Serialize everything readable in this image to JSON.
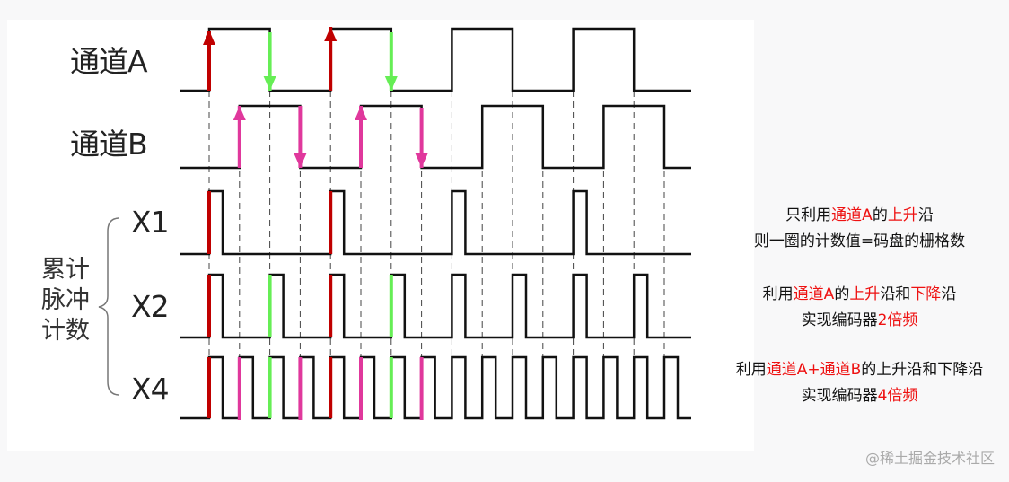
{
  "labels": {
    "channel_a": "通道A",
    "channel_b": "通道B",
    "x1": "X1",
    "x2": "X2",
    "x4": "X4",
    "pulse_count": "累计脉冲计数"
  },
  "colors": {
    "rise_a": "#c00000",
    "fall_a": "#66ee55",
    "edge_b": "#e0389c",
    "highlight_text": "#ee1111",
    "wave": "#111111"
  },
  "notes": [
    {
      "lines": [
        [
          {
            "t": "只利用",
            "red": false
          },
          {
            "t": "通道A",
            "red": true
          },
          {
            "t": "的",
            "red": false
          },
          {
            "t": "上升",
            "red": true
          },
          {
            "t": "沿",
            "red": false
          }
        ],
        [
          {
            "t": "则一圈的计数值=码盘的栅格数",
            "red": false
          }
        ]
      ]
    },
    {
      "lines": [
        [
          {
            "t": "利用",
            "red": false
          },
          {
            "t": "通道A",
            "red": true
          },
          {
            "t": "的",
            "red": false
          },
          {
            "t": "上升",
            "red": true
          },
          {
            "t": "沿和",
            "red": false
          },
          {
            "t": "下降",
            "red": true
          },
          {
            "t": "沿",
            "red": false
          }
        ],
        [
          {
            "t": "实现编码器",
            "red": false
          },
          {
            "t": "2倍频",
            "red": true
          }
        ]
      ]
    },
    {
      "lines": [
        [
          {
            "t": "利用",
            "red": false
          },
          {
            "t": "通道A+通道B",
            "red": true
          },
          {
            "t": "的上升沿和下降沿",
            "red": false
          }
        ],
        [
          {
            "t": "实现编码器",
            "red": false
          },
          {
            "t": "4倍频",
            "red": true
          }
        ]
      ]
    }
  ],
  "watermark": "@稀土掘金技术社区"
}
